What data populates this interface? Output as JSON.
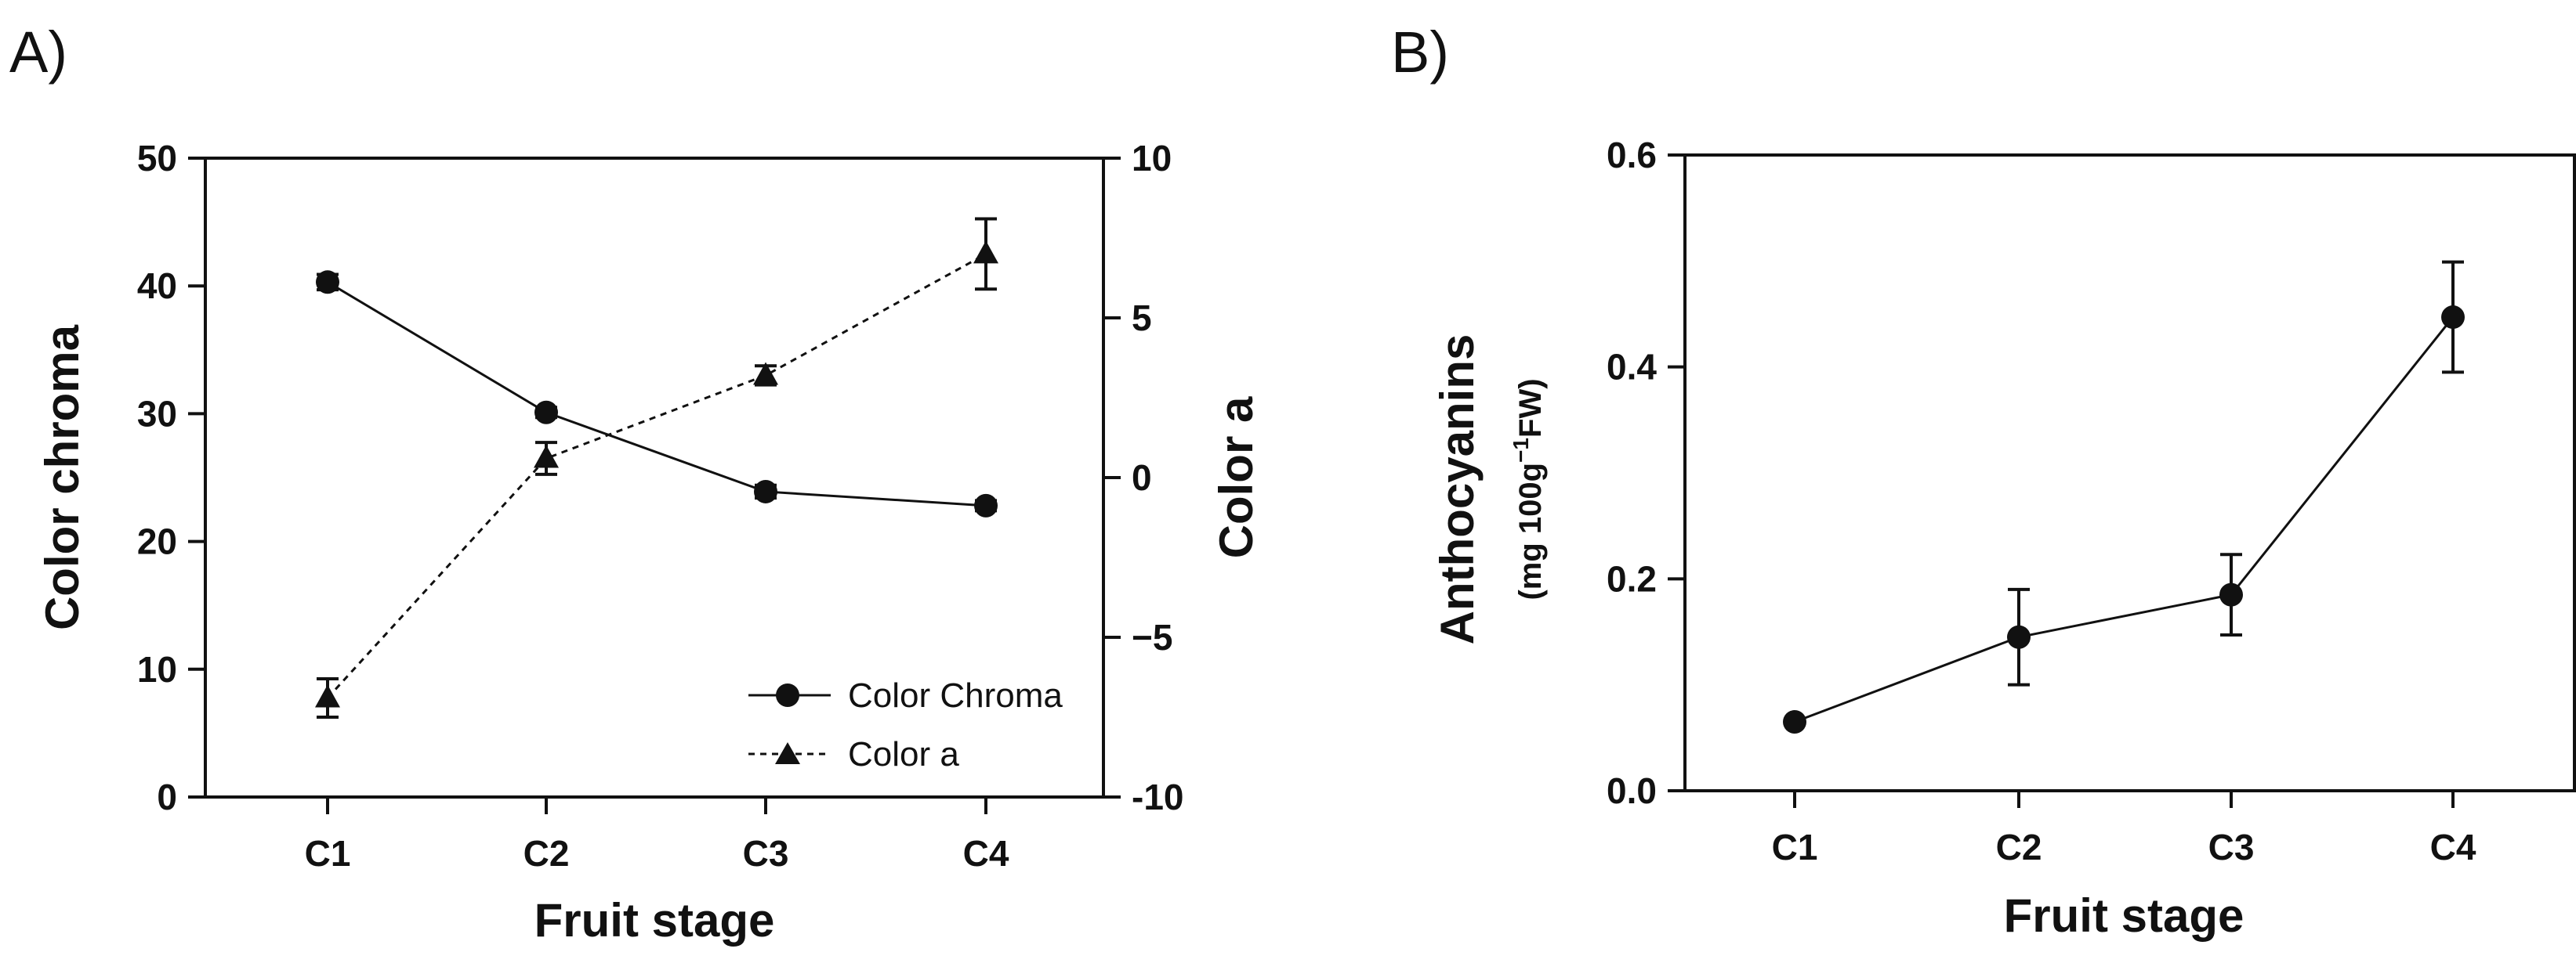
{
  "panels": [
    {
      "label": "A)",
      "chart_data": {
        "type": "line",
        "categories": [
          "C1",
          "C2",
          "C3",
          "C4"
        ],
        "xlabel": "Fruit stage",
        "ylabel": "Color chroma",
        "y2label": "Color a",
        "ylim": [
          0,
          50
        ],
        "y2lim": [
          -10,
          10
        ],
        "yticks": [
          0,
          10,
          20,
          30,
          40,
          50
        ],
        "y2ticks": [
          -10,
          -5,
          0,
          5,
          10
        ],
        "ytick_labels": [
          "0",
          "10",
          "20",
          "30",
          "40",
          "50"
        ],
        "y2tick_labels": [
          "-10",
          "−5",
          "0",
          "5",
          "10"
        ],
        "grid": false,
        "legend_position": "bottom-right",
        "series": [
          {
            "name": "Color Chroma",
            "axis": "left",
            "marker": "circle",
            "line": "solid",
            "values": [
              40.3,
              30.1,
              23.9,
              22.8
            ],
            "errors": [
              0.6,
              0.4,
              0.5,
              0.4
            ]
          },
          {
            "name": "Color a",
            "axis": "right",
            "marker": "triangle",
            "line": "dashed",
            "values": [
              -6.9,
              0.6,
              3.2,
              7.0
            ],
            "errors": [
              0.6,
              0.5,
              0.3,
              1.1
            ]
          }
        ]
      }
    },
    {
      "label": "B)",
      "chart_data": {
        "type": "line",
        "categories": [
          "C1",
          "C2",
          "C3",
          "C4"
        ],
        "xlabel": "Fruit stage",
        "ylabel": "Anthocyanins",
        "ylabel_sub_prefix": "(mg 100g",
        "ylabel_sub_sup": "−1",
        "ylabel_sub_suffix": "FW)",
        "ylim": [
          0,
          0.6
        ],
        "yticks": [
          0,
          0.2,
          0.4,
          0.6
        ],
        "ytick_labels": [
          "0.0",
          "0.2",
          "0.4",
          "0.6"
        ],
        "grid": false,
        "series": [
          {
            "marker": "circle",
            "line": "solid",
            "values": [
              0.065,
              0.145,
              0.185,
              0.447
            ],
            "errors": [
              0.005,
              0.045,
              0.038,
              0.052
            ]
          }
        ]
      }
    }
  ]
}
